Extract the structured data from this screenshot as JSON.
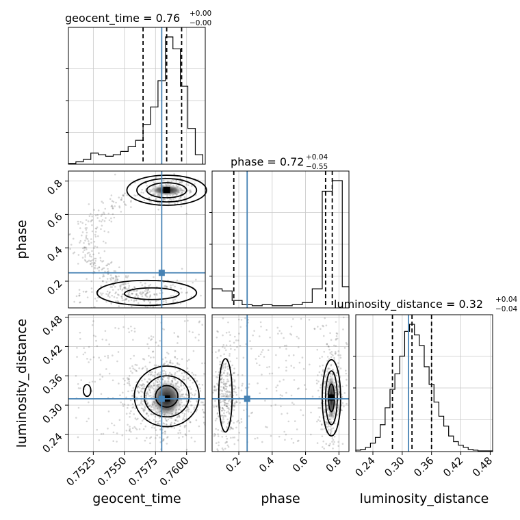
{
  "chart_data": {
    "type": "corner",
    "parameters": [
      {
        "name": "geocent_time",
        "axis_label": "geocent_time",
        "title": "geocent_time = 0.76",
        "title_main": "geocent_time = 0.76",
        "title_sup": "+0.00",
        "title_sub": "−0.00",
        "range": [
          0.7505,
          0.7615
        ],
        "ticks": [
          0.7525,
          0.755,
          0.7575,
          0.76
        ],
        "tick_labels": [
          "0.7525",
          "0.7550",
          "0.7575",
          "0.7600"
        ],
        "truth": 0.758,
        "quantiles": [
          0.7565,
          0.7584,
          0.7596
        ],
        "hist_bin_edges": [
          0.7505,
          0.7511,
          0.7517,
          0.7523,
          0.7529,
          0.7535,
          0.7541,
          0.7547,
          0.7553,
          0.7559,
          0.7565,
          0.7571,
          0.7577,
          0.7583,
          0.7589,
          0.7595,
          0.7601,
          0.7607,
          0.7613
        ],
        "hist_counts": [
          1,
          3,
          6,
          14,
          12,
          10,
          12,
          16,
          22,
          30,
          50,
          72,
          105,
          160,
          145,
          98,
          45,
          12
        ]
      },
      {
        "name": "phase",
        "axis_label": "phase",
        "title": "phase = 0.72",
        "title_main": "phase = 0.72",
        "title_sup": "+0.04",
        "title_sub": "−0.55",
        "range": [
          0.04,
          0.86
        ],
        "ticks": [
          0.2,
          0.4,
          0.6,
          0.8
        ],
        "tick_labels": [
          "0.2",
          "0.4",
          "0.6",
          "0.8"
        ],
        "truth": 0.25,
        "quantiles": [
          0.17,
          0.72,
          0.76
        ],
        "hist_bin_edges": [
          0.04,
          0.1,
          0.16,
          0.22,
          0.28,
          0.34,
          0.4,
          0.46,
          0.52,
          0.58,
          0.64,
          0.7,
          0.76,
          0.82,
          0.86
        ],
        "hist_counts": [
          18,
          16,
          7,
          3,
          2,
          3,
          2,
          2,
          3,
          5,
          18,
          110,
          120,
          20
        ]
      },
      {
        "name": "luminosity_distance",
        "axis_label": "luminosity_distance",
        "title": "luminosity_distance = 0.32",
        "title_main": "luminosity_distance = 0.32",
        "title_sup": "+0.04",
        "title_sub": "−0.04",
        "range": [
          0.205,
          0.485
        ],
        "ticks": [
          0.24,
          0.3,
          0.36,
          0.42,
          0.48
        ],
        "tick_labels": [
          "0.24",
          "0.30",
          "0.36",
          "0.42",
          "0.48"
        ],
        "truth": 0.313,
        "quantiles": [
          0.28,
          0.32,
          0.36
        ],
        "hist_bin_edges": [
          0.205,
          0.215,
          0.225,
          0.235,
          0.245,
          0.255,
          0.265,
          0.275,
          0.285,
          0.295,
          0.305,
          0.315,
          0.325,
          0.335,
          0.345,
          0.355,
          0.365,
          0.375,
          0.385,
          0.395,
          0.405,
          0.415,
          0.425,
          0.435,
          0.445,
          0.455,
          0.465,
          0.475,
          0.485
        ],
        "hist_counts": [
          2,
          3,
          6,
          12,
          20,
          38,
          62,
          88,
          110,
          135,
          170,
          180,
          165,
          150,
          120,
          95,
          70,
          50,
          36,
          22,
          14,
          9,
          6,
          3,
          2,
          1,
          1,
          1
        ]
      }
    ],
    "truth_color": "#4682b4",
    "hist_color": "#000000",
    "quantile_line_style": "dashed",
    "grid": true,
    "layout": "lower-triangle 3x3"
  }
}
